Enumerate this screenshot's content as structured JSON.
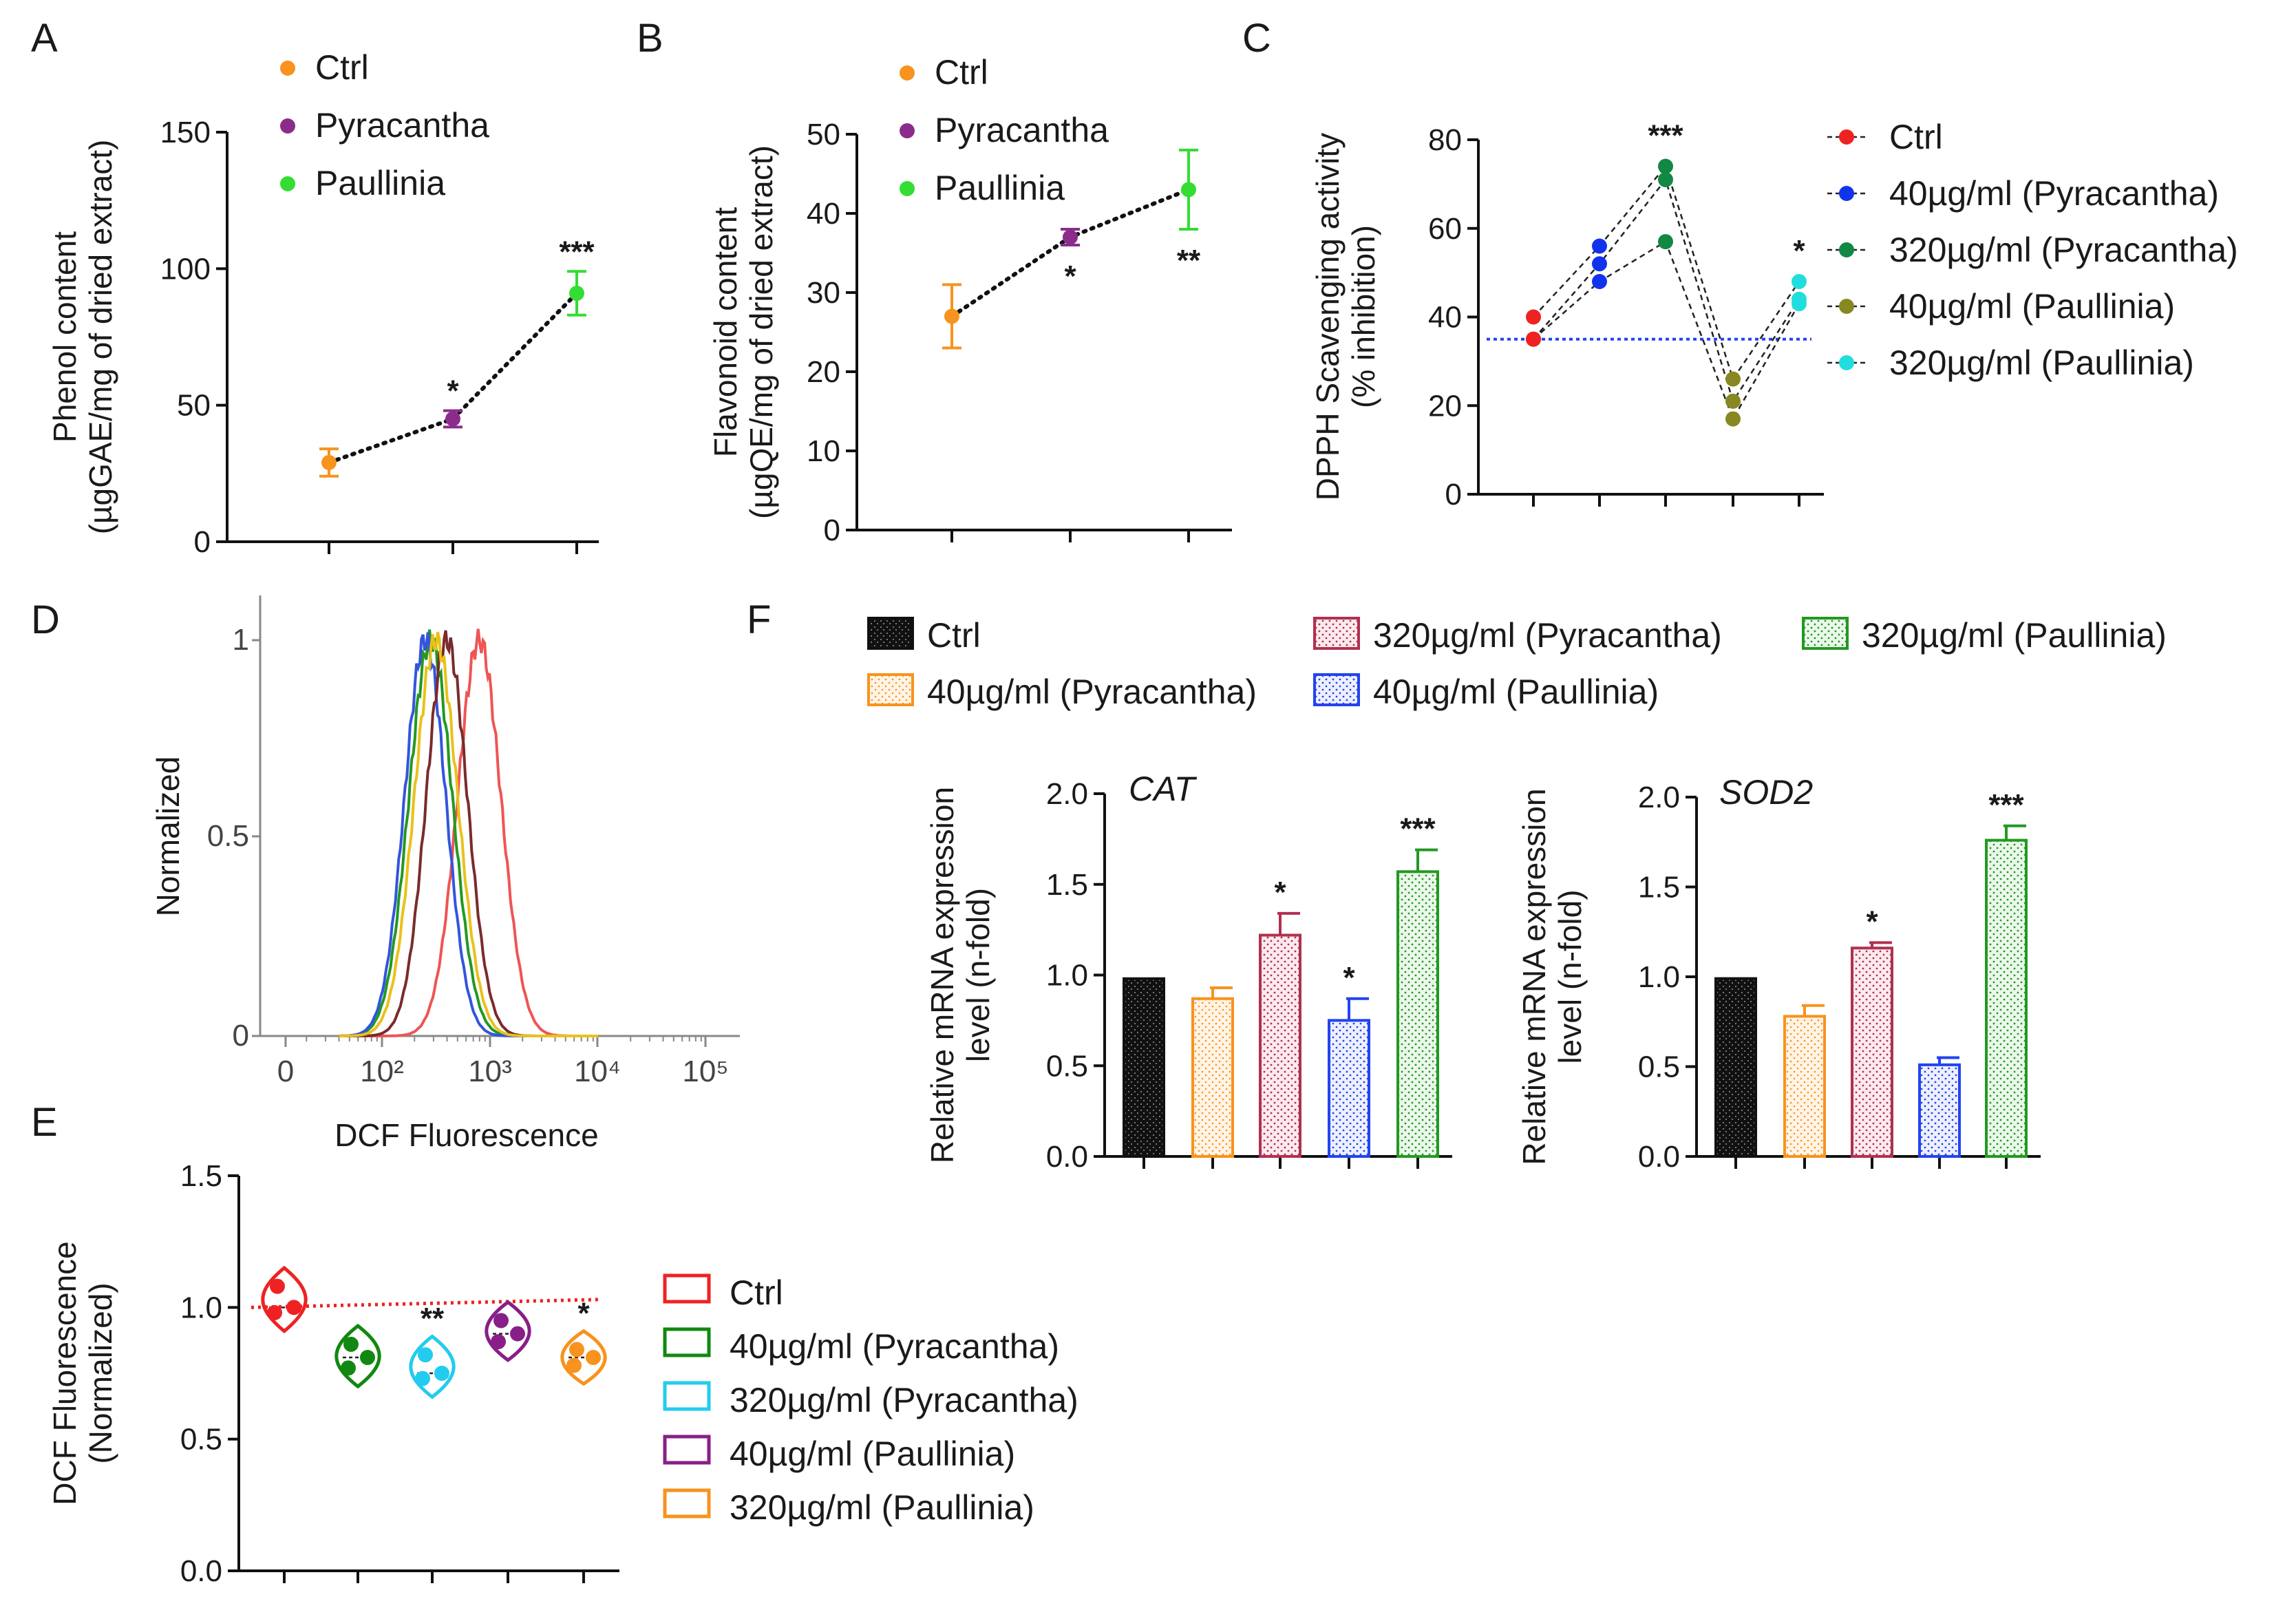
{
  "figure": {
    "panels": [
      "A",
      "B",
      "C",
      "D",
      "E",
      "F"
    ]
  },
  "chart_data": [
    {
      "panel": "A",
      "type": "scatter",
      "categories": [
        "Ctrl",
        "Pyracantha",
        "Paullinia"
      ],
      "values": [
        29,
        45,
        91
      ],
      "errors": [
        5,
        3,
        8
      ],
      "colors": [
        "#f7931e",
        "#8b2c8c",
        "#33dd33"
      ],
      "significance": [
        "",
        "*",
        "***"
      ],
      "ylabel": [
        "Phenol content",
        "(µgGAE/mg of dried extract)"
      ],
      "ylim": [
        0,
        150
      ],
      "yticks": [
        0,
        50,
        100,
        150
      ],
      "connector": "dotted line"
    },
    {
      "panel": "B",
      "type": "scatter",
      "categories": [
        "Ctrl",
        "Pyracantha",
        "Paullinia"
      ],
      "values": [
        27,
        37,
        43
      ],
      "errors": [
        4,
        1,
        5
      ],
      "colors": [
        "#f7931e",
        "#8b2c8c",
        "#33dd33"
      ],
      "significance": [
        "",
        "*",
        "**"
      ],
      "ylabel": [
        "Flavonoid content",
        "(µgQE/mg of dried extract)"
      ],
      "ylim": [
        0,
        50
      ],
      "yticks": [
        0,
        10,
        20,
        30,
        40,
        50
      ],
      "connector": "dotted line"
    },
    {
      "panel": "C",
      "type": "line",
      "legend": [
        "Ctrl",
        "40µg/ml (Pyracantha)",
        "320µg/ml (Pyracantha)",
        "40µg/ml (Paullinia)",
        "320µg/ml (Paullinia)"
      ],
      "colors": [
        "#ee2222",
        "#1133ee",
        "#118844",
        "#888822",
        "#22dddd"
      ],
      "points": [
        [
          40,
          35,
          35
        ],
        [
          56,
          52,
          48
        ],
        [
          74,
          71,
          57
        ],
        [
          26,
          21,
          17
        ],
        [
          48,
          44,
          43
        ]
      ],
      "significance": [
        "",
        "",
        "***",
        "",
        "*"
      ],
      "reference_line": 35,
      "ylabel": [
        "DPPH Scavenging activity",
        "(% inhibition)"
      ],
      "ylim": [
        0,
        80
      ],
      "yticks": [
        0,
        20,
        40,
        60,
        80
      ]
    },
    {
      "panel": "D",
      "type": "line",
      "title": "",
      "xlabel": "DCF Fluorescence",
      "ylabel": "Normalized",
      "xticks": [
        "0",
        "10²",
        "10³",
        "10⁴",
        "10⁵"
      ],
      "yticks": [
        "0",
        "0.5",
        "1"
      ],
      "series": [
        {
          "name": "Ctrl",
          "color": "#ee5555",
          "peak_log10": 2.9,
          "width": 0.2
        },
        {
          "name": "40µg/ml (Pyracantha)",
          "color": "#229922",
          "peak_log10": 2.45,
          "width": 0.2
        },
        {
          "name": "320µg/ml (Pyracantha)",
          "color": "#3355dd",
          "peak_log10": 2.4,
          "width": 0.19
        },
        {
          "name": "40µg/ml (Paullinia)",
          "color": "#7a2b2b",
          "peak_log10": 2.6,
          "width": 0.19
        },
        {
          "name": "320µg/ml (Paullinia)",
          "color": "#e8c21a",
          "peak_log10": 2.5,
          "width": 0.2
        }
      ]
    },
    {
      "panel": "E",
      "type": "scatter",
      "subtype": "violin",
      "legend": [
        "Ctrl",
        "40µg/ml (Pyracantha)",
        "320µg/ml (Pyracantha)",
        "40µg/ml (Paullinia)",
        "320µg/ml (Paullinia)"
      ],
      "colors": [
        "#ee2222",
        "#118811",
        "#22ccee",
        "#881f88",
        "#f7931e"
      ],
      "points": [
        [
          1.08,
          1.0,
          0.98
        ],
        [
          0.86,
          0.81,
          0.77
        ],
        [
          0.82,
          0.75,
          0.73
        ],
        [
          0.95,
          0.9,
          0.87
        ],
        [
          0.84,
          0.81,
          0.78
        ]
      ],
      "medians": [
        1.0,
        0.81,
        0.75,
        0.9,
        0.81
      ],
      "significance": [
        "",
        "",
        "**",
        "",
        "*"
      ],
      "reference_line": [
        1.0,
        1.03
      ],
      "ylabel": [
        "DCF Fluorescence",
        "(Normalized)"
      ],
      "ylim": [
        0,
        1.5
      ],
      "yticks": [
        "0.0",
        "0.5",
        "1.0",
        "1.5"
      ]
    },
    {
      "panel": "F",
      "type": "bar",
      "legend": [
        "Ctrl",
        "320µg/ml (Pyracantha)",
        "320µg/ml (Paullinia)",
        "40µg/ml (Pyracantha)",
        "40µg/ml (Paullinia)"
      ],
      "series_colors": {
        "Ctrl": "#111111",
        "40µg/ml (Pyracantha)": "#f7931e",
        "320µg/ml (Pyracantha)": "#b03050",
        "40µg/ml (Paullinia)": "#2244ee",
        "320µg/ml (Paullinia)": "#229922"
      },
      "categories": [
        "Ctrl",
        "40µg/ml (Pyracantha)",
        "320µg/ml (Pyracantha)",
        "40µg/ml (Paullinia)",
        "320µg/ml (Paullinia)"
      ],
      "ylabel": [
        "Relative mRNA expression",
        "level (n-fold)"
      ],
      "ylim": [
        0,
        2.0
      ],
      "yticks": [
        "0.0",
        "0.5",
        "1.0",
        "1.5",
        "2.0"
      ],
      "subcharts": [
        {
          "title": "CAT",
          "values": [
            0.98,
            0.87,
            1.22,
            0.75,
            1.57
          ],
          "errors": [
            0,
            0.06,
            0.12,
            0.12,
            0.12
          ],
          "significance": [
            "",
            "",
            "*",
            "*",
            "***"
          ]
        },
        {
          "title": "SOD2",
          "values": [
            0.99,
            0.78,
            1.16,
            0.51,
            1.76
          ],
          "errors": [
            0,
            0.06,
            0.03,
            0.04,
            0.08
          ],
          "significance": [
            "",
            "",
            "*",
            "",
            "***"
          ]
        }
      ]
    }
  ]
}
